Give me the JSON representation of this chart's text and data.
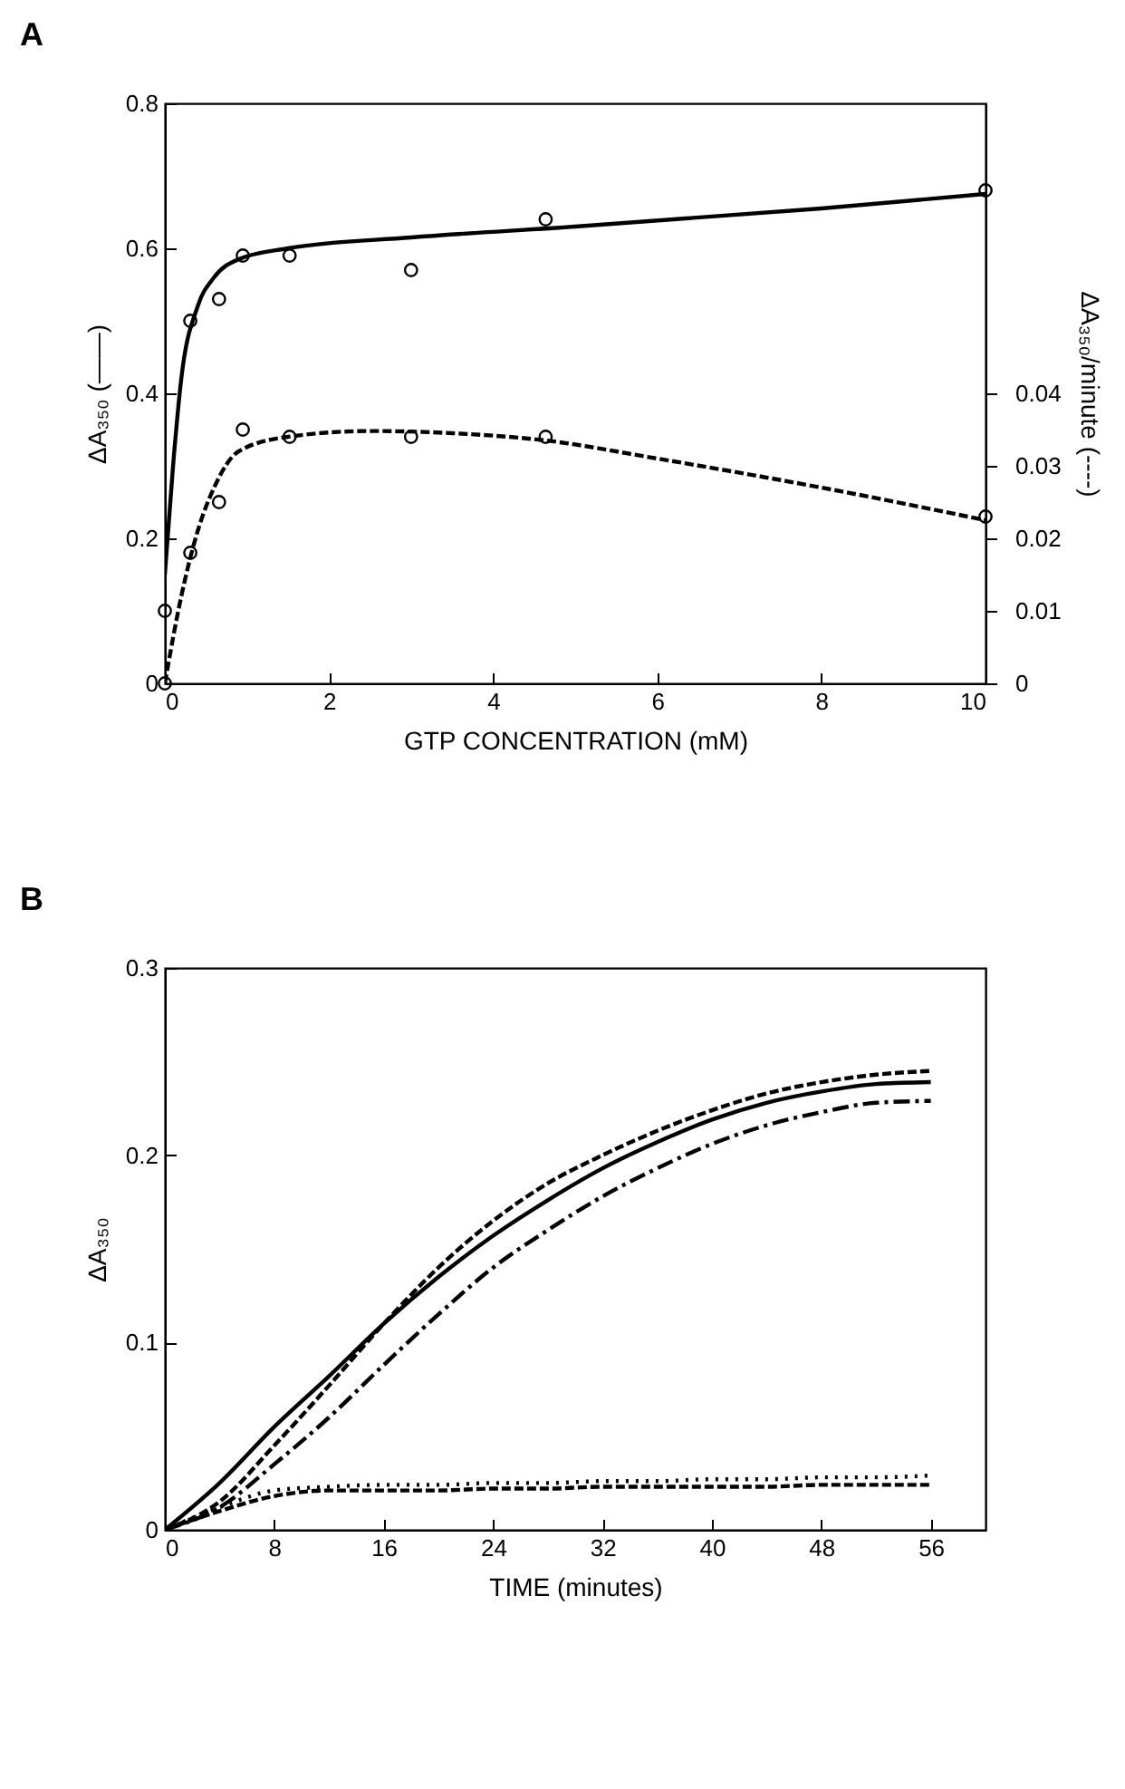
{
  "chart_data": [
    {
      "type": "line",
      "title": "A",
      "xlabel": "GTP CONCENTRATION  (mM)",
      "ylabel": "ΔA₃₅₀  (——)",
      "y2label": "ΔA₃₅₀/minute  (----)",
      "xlim": [
        0,
        10
      ],
      "xticks": [
        0,
        2,
        4,
        6,
        8,
        10
      ],
      "ylim": [
        0,
        0.8
      ],
      "yticks": [
        0,
        0.2,
        0.4,
        0.6,
        0.8
      ],
      "y2lim": [
        0,
        0.08
      ],
      "y2ticks": [
        0,
        0.01,
        0.02,
        0.03,
        0.04
      ],
      "series": [
        {
          "color": "#000000",
          "line_style": "solid",
          "x": [
            0,
            0.1,
            0.2,
            0.4,
            0.6,
            0.9,
            1.5,
            3,
            5,
            8,
            10
          ],
          "values": [
            0.15,
            0.3,
            0.42,
            0.52,
            0.56,
            0.585,
            0.6,
            0.615,
            0.63,
            0.655,
            0.675
          ]
        },
        {
          "type": "scatter",
          "color": "#000000",
          "marker": "circle",
          "x": [
            0,
            0.31,
            0.66,
            0.95,
            1.52,
            3,
            4.64,
            10
          ],
          "values": [
            0.1,
            0.5,
            0.53,
            0.59,
            0.59,
            0.57,
            0.64,
            0.68
          ]
        },
        {
          "axis": "y2",
          "color": "#000000",
          "line_style": "dashed",
          "x": [
            0,
            0.2,
            0.4,
            0.6,
            0.9,
            1.5,
            2.5,
            3.5,
            4.64,
            6,
            8,
            10
          ],
          "values": [
            0,
            0.012,
            0.021,
            0.027,
            0.032,
            0.034,
            0.0348,
            0.0345,
            0.0335,
            0.031,
            0.027,
            0.0225
          ]
        },
        {
          "type": "scatter",
          "axis": "y2",
          "color": "#000000",
          "marker": "circle",
          "x": [
            0,
            0.31,
            0.66,
            0.95,
            1.52,
            3,
            4.64,
            10
          ],
          "values": [
            0,
            0.018,
            0.025,
            0.035,
            0.034,
            0.034,
            0.034,
            0.023
          ]
        }
      ]
    },
    {
      "type": "line",
      "title": "B",
      "xlabel": "TIME  (minutes)",
      "ylabel": "ΔA₃₅₀",
      "xlim": [
        0,
        60
      ],
      "xticks": [
        0,
        8,
        16,
        24,
        32,
        40,
        48,
        56
      ],
      "ylim": [
        0,
        0.3
      ],
      "yticks": [
        0,
        0.1,
        0.2,
        0.3
      ],
      "x": [
        0,
        4,
        8,
        12,
        16,
        20,
        24,
        28,
        32,
        36,
        40,
        44,
        48,
        52,
        56
      ],
      "series": [
        {
          "color": "#000000",
          "line_style": "solid",
          "values": [
            0,
            0.025,
            0.055,
            0.082,
            0.11,
            0.135,
            0.157,
            0.176,
            0.193,
            0.207,
            0.219,
            0.228,
            0.234,
            0.238,
            0.239
          ]
        },
        {
          "color": "#000000",
          "line_style": "dashed",
          "values": [
            0,
            0.015,
            0.045,
            0.077,
            0.11,
            0.14,
            0.165,
            0.185,
            0.2,
            0.213,
            0.224,
            0.233,
            0.239,
            0.243,
            0.245
          ]
        },
        {
          "color": "#000000",
          "line_style": "dashdot",
          "values": [
            0,
            0.012,
            0.035,
            0.06,
            0.088,
            0.115,
            0.14,
            0.16,
            0.178,
            0.193,
            0.206,
            0.216,
            0.223,
            0.228,
            0.229
          ]
        },
        {
          "color": "#000000",
          "line_style": "dotted",
          "values": [
            0,
            0.012,
            0.021,
            0.023,
            0.024,
            0.024,
            0.025,
            0.025,
            0.026,
            0.026,
            0.027,
            0.027,
            0.028,
            0.028,
            0.029
          ]
        },
        {
          "color": "#000000",
          "line_style": "dashed",
          "values": [
            0,
            0.01,
            0.018,
            0.021,
            0.021,
            0.021,
            0.022,
            0.022,
            0.023,
            0.023,
            0.023,
            0.023,
            0.024,
            0.024,
            0.024
          ]
        }
      ]
    }
  ]
}
